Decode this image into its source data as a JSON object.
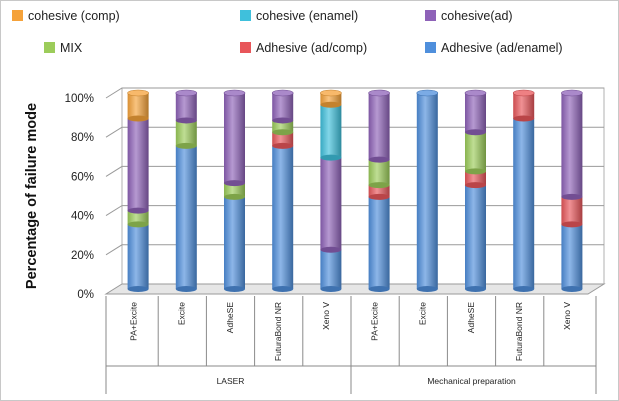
{
  "chart_data": {
    "type": "bar",
    "stacked": true,
    "title": "",
    "xlabel": "",
    "ylabel": "Percentage of failure mode",
    "ylim": [
      0,
      100
    ],
    "yticks": [
      "0%",
      "20%",
      "40%",
      "60%",
      "80%",
      "100%"
    ],
    "grid": true,
    "legend_position": "top",
    "categories": [
      "PA+Excite",
      "Excite",
      "AdheSE",
      "FuturaBond NR",
      "Xeno V",
      "PA+Excite",
      "Excite",
      "AdheSE",
      "FuturaBond NR",
      "Xeno V"
    ],
    "groups": [
      {
        "label": "LASER",
        "categories": [
          "PA+Excite",
          "Excite",
          "AdheSE",
          "FuturaBond NR",
          "Xeno V"
        ]
      },
      {
        "label": "Mechanical preparation",
        "categories": [
          "PA+Excite",
          "Excite",
          "AdheSE",
          "FuturaBond NR",
          "Xeno V"
        ]
      }
    ],
    "series": [
      {
        "name": "Adhesive (ad/enamel)",
        "color": "#4f8fdc",
        "values": [
          33,
          73,
          47,
          73,
          20,
          47,
          100,
          53,
          87,
          33
        ]
      },
      {
        "name": "Adhesive (ad/comp)",
        "color": "#e8565a",
        "values": [
          0,
          0,
          0,
          7,
          0,
          6,
          0,
          7,
          13,
          14
        ]
      },
      {
        "name": "MIX",
        "color": "#9ccc5a",
        "values": [
          7,
          13,
          7,
          6,
          0,
          13,
          0,
          20,
          0,
          0
        ]
      },
      {
        "name": "cohesive(ad)",
        "color": "#8e62b8",
        "values": [
          47,
          14,
          46,
          14,
          47,
          34,
          0,
          20,
          0,
          53
        ]
      },
      {
        "name": "cohesive (enamel)",
        "color": "#3fc0dc",
        "values": [
          0,
          0,
          0,
          0,
          27,
          0,
          0,
          0,
          0,
          0
        ]
      },
      {
        "name": "cohesive (comp)",
        "color": "#f5a23a",
        "values": [
          13,
          0,
          0,
          0,
          6,
          0,
          0,
          0,
          0,
          0
        ]
      }
    ],
    "legend_order": [
      "cohesive (comp)",
      "cohesive (enamel)",
      "cohesive(ad)",
      "MIX",
      "Adhesive (ad/comp)",
      "Adhesive (ad/enamel)"
    ]
  }
}
